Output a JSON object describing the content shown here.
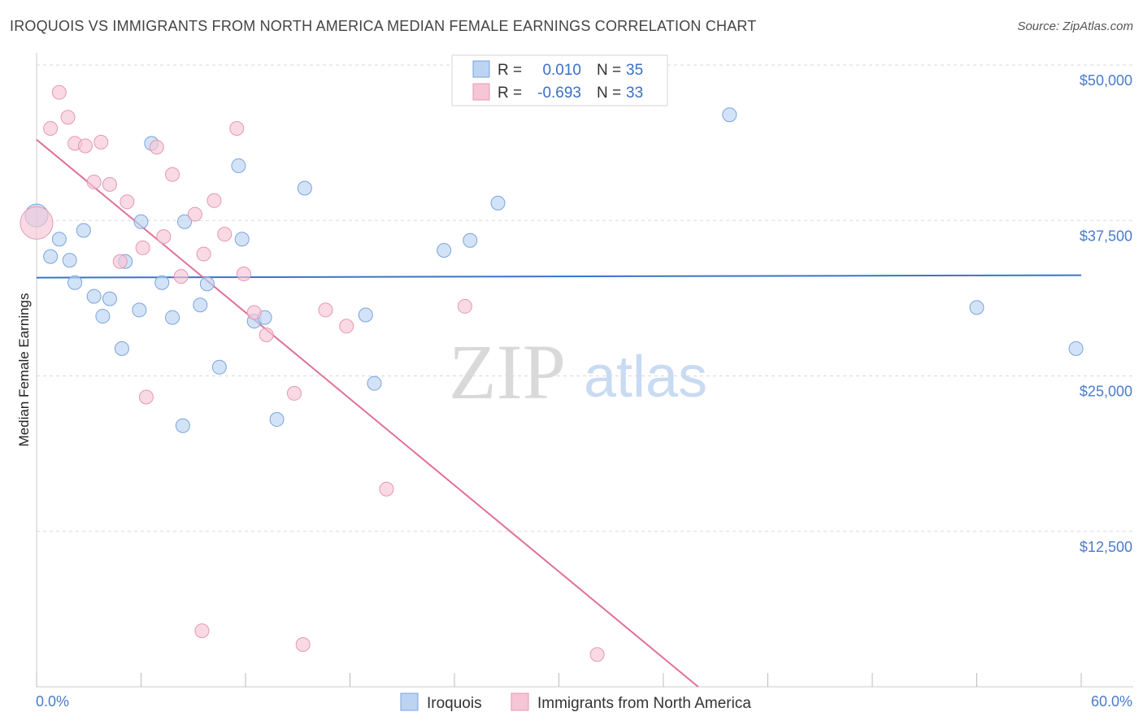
{
  "title": "IROQUOIS VS IMMIGRANTS FROM NORTH AMERICA MEDIAN FEMALE EARNINGS CORRELATION CHART",
  "source": "Source: ZipAtlas.com",
  "colors": {
    "blue": "#3a74c8",
    "blue_fill": "#bcd4f2",
    "pink": "#e0709a",
    "pink_fill": "#f6c6d6",
    "tick_text": "#4a7cc9",
    "grid": "#d8d8d8"
  },
  "legend": {
    "r_label": "R =",
    "n_label": "N =",
    "series": [
      {
        "r": "0.010",
        "n": "35"
      },
      {
        "r": "-0.693",
        "n": "33"
      }
    ]
  },
  "watermark": {
    "zip": "ZIP",
    "atlas": "atlas"
  },
  "chart_data": {
    "type": "scatter",
    "title": "IROQUOIS VS IMMIGRANTS FROM NORTH AMERICA MEDIAN FEMALE EARNINGS CORRELATION CHART",
    "xlabel": "",
    "ylabel": "Median Female Earnings",
    "xlim": [
      0,
      60
    ],
    "ylim": [
      0,
      52000
    ],
    "x_tick_labels": [
      "0.0%",
      "60.0%"
    ],
    "y_tick_labels": [
      "$12,500",
      "$25,000",
      "$37,500",
      "$50,000"
    ],
    "y_ticks": [
      12500,
      25000,
      37500,
      50000
    ],
    "grid": true,
    "legend_position": "top-center",
    "series": [
      {
        "name": "Iroquois",
        "color": "#3a74c8",
        "trend": {
          "x": [
            0,
            60
          ],
          "y": [
            32900,
            33100
          ]
        },
        "points": [
          [
            0.0,
            37900
          ],
          [
            0.8,
            34600
          ],
          [
            1.3,
            36000
          ],
          [
            1.9,
            34300
          ],
          [
            2.2,
            32500
          ],
          [
            2.7,
            36700
          ],
          [
            3.3,
            31400
          ],
          [
            3.8,
            29800
          ],
          [
            4.2,
            31200
          ],
          [
            4.9,
            27200
          ],
          [
            5.1,
            34200
          ],
          [
            5.9,
            30300
          ],
          [
            6.0,
            37400
          ],
          [
            6.6,
            43700
          ],
          [
            7.2,
            32500
          ],
          [
            7.8,
            29700
          ],
          [
            8.4,
            21000
          ],
          [
            8.5,
            37400
          ],
          [
            9.4,
            30700
          ],
          [
            9.8,
            32400
          ],
          [
            10.5,
            25700
          ],
          [
            11.6,
            41900
          ],
          [
            11.8,
            36000
          ],
          [
            12.5,
            29400
          ],
          [
            13.1,
            29700
          ],
          [
            13.8,
            21500
          ],
          [
            15.4,
            40100
          ],
          [
            18.9,
            29900
          ],
          [
            19.4,
            24400
          ],
          [
            23.4,
            35100
          ],
          [
            24.9,
            35900
          ],
          [
            26.5,
            38900
          ],
          [
            39.8,
            46000
          ],
          [
            54.0,
            30500
          ],
          [
            59.7,
            27200
          ]
        ]
      },
      {
        "name": "Immigrants from North America",
        "color": "#e0709a",
        "trend": {
          "x": [
            0,
            38
          ],
          "y": [
            44000,
            0
          ]
        },
        "points": [
          [
            0.0,
            37300
          ],
          [
            0.8,
            44900
          ],
          [
            1.3,
            47800
          ],
          [
            1.8,
            45800
          ],
          [
            2.2,
            43700
          ],
          [
            2.8,
            43500
          ],
          [
            3.3,
            40600
          ],
          [
            3.7,
            43800
          ],
          [
            4.2,
            40400
          ],
          [
            4.8,
            34200
          ],
          [
            5.2,
            39000
          ],
          [
            6.1,
            35300
          ],
          [
            6.3,
            23300
          ],
          [
            6.9,
            43400
          ],
          [
            7.3,
            36200
          ],
          [
            7.8,
            41200
          ],
          [
            8.3,
            33000
          ],
          [
            9.1,
            38000
          ],
          [
            9.5,
            4500
          ],
          [
            9.6,
            34800
          ],
          [
            10.2,
            39100
          ],
          [
            10.8,
            36400
          ],
          [
            11.5,
            44900
          ],
          [
            11.9,
            33200
          ],
          [
            12.5,
            30100
          ],
          [
            13.2,
            28300
          ],
          [
            14.8,
            23600
          ],
          [
            15.3,
            3400
          ],
          [
            16.6,
            30300
          ],
          [
            17.8,
            29000
          ],
          [
            20.1,
            15900
          ],
          [
            24.6,
            30600
          ],
          [
            32.2,
            2600
          ]
        ]
      }
    ]
  }
}
